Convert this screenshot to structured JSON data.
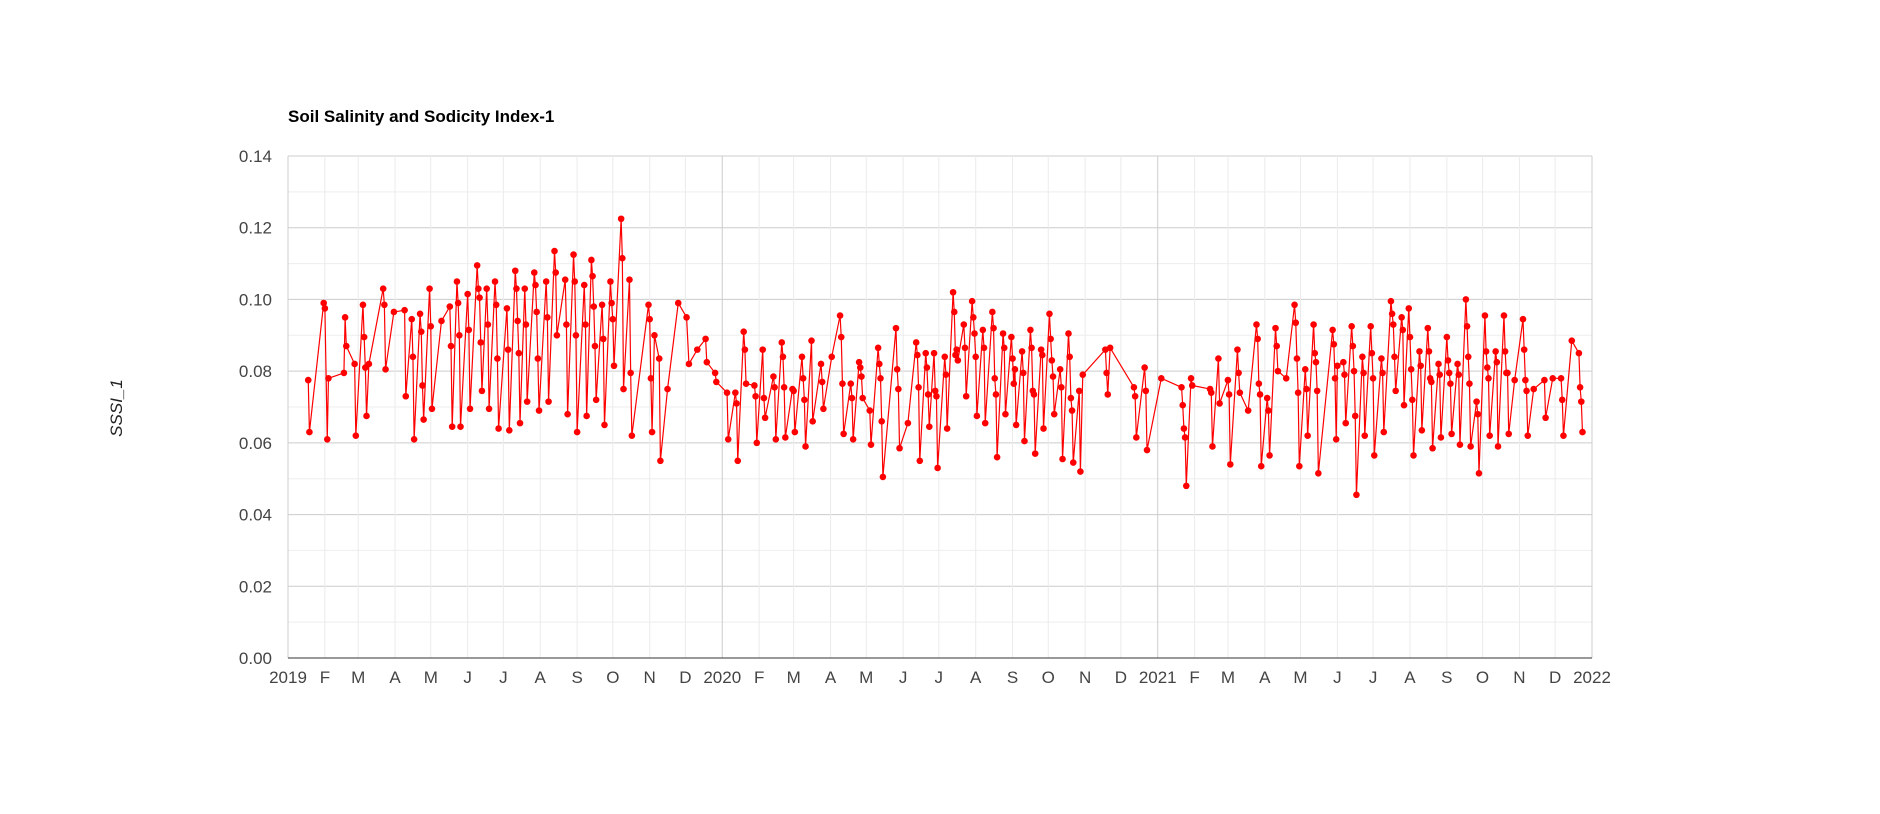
{
  "chart_data": {
    "type": "line",
    "title": "Soil Salinity and Sodicity Index-1",
    "y_label": "SSSI_1",
    "xlim": [
      "2019-01-01",
      "2022-01-01"
    ],
    "xticks": [
      {
        "value": "2019-01-01",
        "label": "2019"
      },
      {
        "value": "2019-02-01",
        "label": "F"
      },
      {
        "value": "2019-03-01",
        "label": "M"
      },
      {
        "value": "2019-04-01",
        "label": "A"
      },
      {
        "value": "2019-05-01",
        "label": "M"
      },
      {
        "value": "2019-06-01",
        "label": "J"
      },
      {
        "value": "2019-07-01",
        "label": "J"
      },
      {
        "value": "2019-08-01",
        "label": "A"
      },
      {
        "value": "2019-09-01",
        "label": "S"
      },
      {
        "value": "2019-10-01",
        "label": "O"
      },
      {
        "value": "2019-11-01",
        "label": "N"
      },
      {
        "value": "2019-12-01",
        "label": "D"
      },
      {
        "value": "2020-01-01",
        "label": "2020"
      },
      {
        "value": "2020-02-01",
        "label": "F"
      },
      {
        "value": "2020-03-01",
        "label": "M"
      },
      {
        "value": "2020-04-01",
        "label": "A"
      },
      {
        "value": "2020-05-01",
        "label": "M"
      },
      {
        "value": "2020-06-01",
        "label": "J"
      },
      {
        "value": "2020-07-01",
        "label": "J"
      },
      {
        "value": "2020-08-01",
        "label": "A"
      },
      {
        "value": "2020-09-01",
        "label": "S"
      },
      {
        "value": "2020-10-01",
        "label": "O"
      },
      {
        "value": "2020-11-01",
        "label": "N"
      },
      {
        "value": "2020-12-01",
        "label": "D"
      },
      {
        "value": "2021-01-01",
        "label": "2021"
      },
      {
        "value": "2021-02-01",
        "label": "F"
      },
      {
        "value": "2021-03-01",
        "label": "M"
      },
      {
        "value": "2021-04-01",
        "label": "A"
      },
      {
        "value": "2021-05-01",
        "label": "M"
      },
      {
        "value": "2021-06-01",
        "label": "J"
      },
      {
        "value": "2021-07-01",
        "label": "J"
      },
      {
        "value": "2021-08-01",
        "label": "A"
      },
      {
        "value": "2021-09-01",
        "label": "S"
      },
      {
        "value": "2021-10-01",
        "label": "O"
      },
      {
        "value": "2021-11-01",
        "label": "N"
      },
      {
        "value": "2021-12-01",
        "label": "D"
      },
      {
        "value": "2022-01-01",
        "label": "2022"
      }
    ],
    "ylim": [
      0,
      0.14
    ],
    "yticks": [
      {
        "value": 0,
        "label": "0.00"
      },
      0.02,
      0.04,
      0.06,
      0.08,
      {
        "value": 0.1,
        "label": "0.10"
      },
      0.12,
      0.14
    ],
    "grid": true,
    "x": [
      "2019-01-18",
      "2019-01-19",
      "2019-01-31",
      "2019-02-01",
      "2019-02-03",
      "2019-02-04",
      "2019-02-17",
      "2019-02-18",
      "2019-02-19",
      "2019-02-26",
      "2019-02-27",
      "2019-03-05",
      "2019-03-06",
      "2019-03-07",
      "2019-03-08",
      "2019-03-10",
      "2019-03-22",
      "2019-03-23",
      "2019-03-24",
      "2019-03-31",
      "2019-04-09",
      "2019-04-10",
      "2019-04-15",
      "2019-04-16",
      "2019-04-17",
      "2019-04-22",
      "2019-04-23",
      "2019-04-24",
      "2019-04-25",
      "2019-04-30",
      "2019-05-01",
      "2019-05-02",
      "2019-05-10",
      "2019-05-17",
      "2019-05-18",
      "2019-05-19",
      "2019-05-23",
      "2019-05-24",
      "2019-05-25",
      "2019-05-26",
      "2019-06-01",
      "2019-06-02",
      "2019-06-03",
      "2019-06-09",
      "2019-06-10",
      "2019-06-11",
      "2019-06-12",
      "2019-06-13",
      "2019-06-17",
      "2019-06-18",
      "2019-06-19",
      "2019-06-24",
      "2019-06-25",
      "2019-06-26",
      "2019-06-27",
      "2019-07-04",
      "2019-07-05",
      "2019-07-06",
      "2019-07-11",
      "2019-07-12",
      "2019-07-13",
      "2019-07-14",
      "2019-07-15",
      "2019-07-19",
      "2019-07-20",
      "2019-07-21",
      "2019-07-27",
      "2019-07-28",
      "2019-07-29",
      "2019-07-30",
      "2019-07-31",
      "2019-08-06",
      "2019-08-07",
      "2019-08-08",
      "2019-08-13",
      "2019-08-14",
      "2019-08-15",
      "2019-08-22",
      "2019-08-23",
      "2019-08-24",
      "2019-08-29",
      "2019-08-30",
      "2019-08-31",
      "2019-09-01",
      "2019-09-07",
      "2019-09-08",
      "2019-09-09",
      "2019-09-13",
      "2019-09-14",
      "2019-09-15",
      "2019-09-16",
      "2019-09-17",
      "2019-09-22",
      "2019-09-23",
      "2019-09-24",
      "2019-09-29",
      "2019-09-30",
      "2019-10-01",
      "2019-10-02",
      "2019-10-08",
      "2019-10-09",
      "2019-10-10",
      "2019-10-15",
      "2019-10-16",
      "2019-10-17",
      "2019-10-31",
      "2019-11-01",
      "2019-11-02",
      "2019-11-03",
      "2019-11-05",
      "2019-11-09",
      "2019-11-10",
      "2019-11-16",
      "2019-11-25",
      "2019-12-02",
      "2019-12-04",
      "2019-12-11",
      "2019-12-18",
      "2019-12-19",
      "2019-12-26",
      "2019-12-27",
      "2020-01-05",
      "2020-01-06",
      "2020-01-12",
      "2020-01-13",
      "2020-01-14",
      "2020-01-19",
      "2020-01-20",
      "2020-01-21",
      "2020-01-28",
      "2020-01-29",
      "2020-01-30",
      "2020-02-04",
      "2020-02-05",
      "2020-02-06",
      "2020-02-13",
      "2020-02-14",
      "2020-02-15",
      "2020-02-20",
      "2020-02-21",
      "2020-02-22",
      "2020-02-23",
      "2020-02-29",
      "2020-03-01",
      "2020-03-02",
      "2020-03-08",
      "2020-03-09",
      "2020-03-10",
      "2020-03-11",
      "2020-03-16",
      "2020-03-17",
      "2020-03-24",
      "2020-03-25",
      "2020-03-26",
      "2020-04-02",
      "2020-04-09",
      "2020-04-10",
      "2020-04-11",
      "2020-04-12",
      "2020-04-18",
      "2020-04-19",
      "2020-04-20",
      "2020-04-25",
      "2020-04-26",
      "2020-04-27",
      "2020-04-28",
      "2020-05-04",
      "2020-05-05",
      "2020-05-11",
      "2020-05-12",
      "2020-05-13",
      "2020-05-14",
      "2020-05-15",
      "2020-05-26",
      "2020-05-27",
      "2020-05-28",
      "2020-05-29",
      "2020-06-05",
      "2020-06-12",
      "2020-06-13",
      "2020-06-14",
      "2020-06-15",
      "2020-06-20",
      "2020-06-21",
      "2020-06-22",
      "2020-06-23",
      "2020-06-27",
      "2020-06-28",
      "2020-06-29",
      "2020-06-30",
      "2020-07-06",
      "2020-07-07",
      "2020-07-08",
      "2020-07-13",
      "2020-07-14",
      "2020-07-15",
      "2020-07-16",
      "2020-07-17",
      "2020-07-22",
      "2020-07-23",
      "2020-07-24",
      "2020-07-29",
      "2020-07-30",
      "2020-07-31",
      "2020-08-01",
      "2020-08-02",
      "2020-08-07",
      "2020-08-08",
      "2020-08-09",
      "2020-08-15",
      "2020-08-16",
      "2020-08-17",
      "2020-08-18",
      "2020-08-19",
      "2020-08-24",
      "2020-08-25",
      "2020-08-26",
      "2020-08-31",
      "2020-09-01",
      "2020-09-02",
      "2020-09-03",
      "2020-09-04",
      "2020-09-09",
      "2020-09-10",
      "2020-09-11",
      "2020-09-16",
      "2020-09-17",
      "2020-09-18",
      "2020-09-19",
      "2020-09-20",
      "2020-09-25",
      "2020-09-26",
      "2020-09-27",
      "2020-10-02",
      "2020-10-03",
      "2020-10-04",
      "2020-10-05",
      "2020-10-06",
      "2020-10-11",
      "2020-10-12",
      "2020-10-13",
      "2020-10-18",
      "2020-10-19",
      "2020-10-20",
      "2020-10-21",
      "2020-10-22",
      "2020-10-27",
      "2020-10-28",
      "2020-10-30",
      "2020-11-18",
      "2020-11-19",
      "2020-11-20",
      "2020-11-22",
      "2020-12-12",
      "2020-12-13",
      "2020-12-14",
      "2020-12-21",
      "2020-12-22",
      "2020-12-23",
      "2021-01-04",
      "2021-01-21",
      "2021-01-22",
      "2021-01-23",
      "2021-01-24",
      "2021-01-25",
      "2021-01-29",
      "2021-01-30",
      "2021-02-14",
      "2021-02-15",
      "2021-02-16",
      "2021-02-21",
      "2021-02-22",
      "2021-03-01",
      "2021-03-02",
      "2021-03-03",
      "2021-03-09",
      "2021-03-10",
      "2021-03-11",
      "2021-03-18",
      "2021-03-25",
      "2021-03-26",
      "2021-03-27",
      "2021-03-28",
      "2021-03-29",
      "2021-04-03",
      "2021-04-04",
      "2021-04-05",
      "2021-04-10",
      "2021-04-11",
      "2021-04-12",
      "2021-04-19",
      "2021-04-26",
      "2021-04-27",
      "2021-04-28",
      "2021-04-29",
      "2021-04-30",
      "2021-05-05",
      "2021-05-06",
      "2021-05-07",
      "2021-05-12",
      "2021-05-13",
      "2021-05-14",
      "2021-05-15",
      "2021-05-16",
      "2021-05-28",
      "2021-05-29",
      "2021-05-30",
      "2021-05-31",
      "2021-06-01",
      "2021-06-06",
      "2021-06-07",
      "2021-06-08",
      "2021-06-13",
      "2021-06-14",
      "2021-06-15",
      "2021-06-16",
      "2021-06-17",
      "2021-06-22",
      "2021-06-23",
      "2021-06-24",
      "2021-06-29",
      "2021-06-30",
      "2021-07-01",
      "2021-07-02",
      "2021-07-08",
      "2021-07-09",
      "2021-07-10",
      "2021-07-16",
      "2021-07-17",
      "2021-07-18",
      "2021-07-19",
      "2021-07-20",
      "2021-07-25",
      "2021-07-26",
      "2021-07-27",
      "2021-07-31",
      "2021-08-01",
      "2021-08-02",
      "2021-08-03",
      "2021-08-04",
      "2021-08-09",
      "2021-08-10",
      "2021-08-11",
      "2021-08-16",
      "2021-08-17",
      "2021-08-18",
      "2021-08-19",
      "2021-08-20",
      "2021-08-25",
      "2021-08-26",
      "2021-08-27",
      "2021-09-01",
      "2021-09-02",
      "2021-09-03",
      "2021-09-04",
      "2021-09-05",
      "2021-09-10",
      "2021-09-11",
      "2021-09-12",
      "2021-09-17",
      "2021-09-18",
      "2021-09-19",
      "2021-09-20",
      "2021-09-21",
      "2021-09-26",
      "2021-09-27",
      "2021-09-28",
      "2021-10-03",
      "2021-10-04",
      "2021-10-05",
      "2021-10-06",
      "2021-10-07",
      "2021-10-12",
      "2021-10-13",
      "2021-10-14",
      "2021-10-19",
      "2021-10-20",
      "2021-10-21",
      "2021-10-22",
      "2021-10-23",
      "2021-10-28",
      "2021-11-04",
      "2021-11-05",
      "2021-11-06",
      "2021-11-07",
      "2021-11-08",
      "2021-11-13",
      "2021-11-22",
      "2021-11-23",
      "2021-11-29",
      "2021-12-06",
      "2021-12-07",
      "2021-12-08",
      "2021-12-15",
      "2021-12-21",
      "2021-12-22",
      "2021-12-23",
      "2021-12-24"
    ],
    "series": [
      {
        "name": "SSSI_1",
        "color": "#ff0000",
        "values": [
          0.0775,
          0.063,
          0.099,
          0.0975,
          0.061,
          0.078,
          0.0795,
          0.095,
          0.087,
          0.082,
          0.062,
          0.0985,
          0.0895,
          0.081,
          0.0675,
          0.082,
          0.103,
          0.0985,
          0.0805,
          0.0965,
          0.097,
          0.073,
          0.0945,
          0.084,
          0.061,
          0.096,
          0.091,
          0.076,
          0.0665,
          0.103,
          0.0925,
          0.0695,
          0.094,
          0.098,
          0.087,
          0.0645,
          0.105,
          0.099,
          0.09,
          0.0645,
          0.1015,
          0.0915,
          0.0695,
          0.1095,
          0.103,
          0.1005,
          0.088,
          0.0745,
          0.103,
          0.093,
          0.0695,
          0.105,
          0.0985,
          0.0835,
          0.064,
          0.0975,
          0.086,
          0.0635,
          0.108,
          0.103,
          0.094,
          0.085,
          0.0655,
          0.103,
          0.093,
          0.0715,
          0.1075,
          0.104,
          0.0965,
          0.0835,
          0.069,
          0.105,
          0.095,
          0.0715,
          0.1135,
          0.1075,
          0.09,
          0.1055,
          0.093,
          0.068,
          0.1125,
          0.105,
          0.09,
          0.063,
          0.104,
          0.093,
          0.0675,
          0.111,
          0.1065,
          0.098,
          0.087,
          0.072,
          0.0985,
          0.089,
          0.065,
          0.105,
          0.099,
          0.0945,
          0.0815,
          0.1225,
          0.1115,
          0.075,
          0.1055,
          0.0795,
          0.062,
          0.0985,
          0.0945,
          0.078,
          0.063,
          0.09,
          0.0835,
          0.055,
          0.075,
          0.099,
          0.095,
          0.082,
          0.086,
          0.089,
          0.0825,
          0.0795,
          0.077,
          0.074,
          0.061,
          0.074,
          0.071,
          0.055,
          0.091,
          0.086,
          0.0765,
          0.076,
          0.073,
          0.06,
          0.086,
          0.0725,
          0.067,
          0.0785,
          0.0755,
          0.061,
          0.088,
          0.084,
          0.0755,
          0.0615,
          0.075,
          0.0745,
          0.063,
          0.084,
          0.078,
          0.072,
          0.059,
          0.0885,
          0.066,
          0.082,
          0.077,
          0.0695,
          0.084,
          0.0955,
          0.0895,
          0.0765,
          0.0625,
          0.0765,
          0.0725,
          0.061,
          0.0825,
          0.081,
          0.0785,
          0.0725,
          0.069,
          0.0595,
          0.0865,
          0.082,
          0.078,
          0.066,
          0.0505,
          0.092,
          0.0805,
          0.075,
          0.0585,
          0.0655,
          0.088,
          0.0845,
          0.0755,
          0.055,
          0.085,
          0.081,
          0.0735,
          0.0645,
          0.085,
          0.0745,
          0.073,
          0.053,
          0.084,
          0.079,
          0.064,
          0.102,
          0.0965,
          0.0845,
          0.086,
          0.083,
          0.093,
          0.0865,
          0.073,
          0.0995,
          0.095,
          0.0905,
          0.084,
          0.0675,
          0.0915,
          0.0865,
          0.0655,
          0.0965,
          0.092,
          0.078,
          0.0735,
          0.056,
          0.0905,
          0.0865,
          0.068,
          0.0895,
          0.0835,
          0.0765,
          0.0805,
          0.065,
          0.0855,
          0.0795,
          0.0605,
          0.0915,
          0.0865,
          0.0745,
          0.0735,
          0.057,
          0.086,
          0.0845,
          0.064,
          0.096,
          0.089,
          0.083,
          0.0785,
          0.068,
          0.0805,
          0.0755,
          0.0555,
          0.0905,
          0.084,
          0.0725,
          0.069,
          0.0545,
          0.0745,
          0.052,
          0.079,
          0.086,
          0.0795,
          0.0735,
          0.0865,
          0.0755,
          0.073,
          0.0615,
          0.081,
          0.0745,
          0.058,
          0.078,
          0.0755,
          0.0705,
          0.064,
          0.0615,
          0.048,
          0.078,
          0.076,
          0.075,
          0.074,
          0.059,
          0.0835,
          0.071,
          0.0775,
          0.0735,
          0.054,
          0.086,
          0.0795,
          0.074,
          0.069,
          0.093,
          0.089,
          0.0765,
          0.0735,
          0.0535,
          0.0725,
          0.069,
          0.0565,
          0.092,
          0.087,
          0.08,
          0.078,
          0.0985,
          0.0935,
          0.0835,
          0.074,
          0.0535,
          0.0805,
          0.075,
          0.062,
          0.093,
          0.085,
          0.0825,
          0.0745,
          0.0515,
          0.0915,
          0.0875,
          0.078,
          0.061,
          0.0815,
          0.0825,
          0.079,
          0.0655,
          0.0925,
          0.087,
          0.08,
          0.0675,
          0.0455,
          0.084,
          0.0795,
          0.062,
          0.0925,
          0.085,
          0.078,
          0.0565,
          0.0835,
          0.0795,
          0.063,
          0.0995,
          0.096,
          0.093,
          0.084,
          0.0745,
          0.095,
          0.0915,
          0.0705,
          0.0975,
          0.0895,
          0.0805,
          0.072,
          0.0565,
          0.0855,
          0.0815,
          0.0635,
          0.092,
          0.0855,
          0.078,
          0.077,
          0.0585,
          0.082,
          0.079,
          0.0615,
          0.0895,
          0.083,
          0.0795,
          0.0765,
          0.0625,
          0.082,
          0.079,
          0.0595,
          0.1,
          0.0925,
          0.084,
          0.0765,
          0.059,
          0.0715,
          0.068,
          0.0515,
          0.0955,
          0.0855,
          0.081,
          0.078,
          0.062,
          0.0855,
          0.0825,
          0.059,
          0.0955,
          0.0855,
          0.0795,
          0.0795,
          0.0625,
          0.0775,
          0.0945,
          0.086,
          0.0775,
          0.0745,
          0.062,
          0.075,
          0.0775,
          0.067,
          0.078,
          0.078,
          0.072,
          0.062,
          0.0885,
          0.085,
          0.0755,
          0.0715,
          0.063
        ]
      }
    ]
  }
}
